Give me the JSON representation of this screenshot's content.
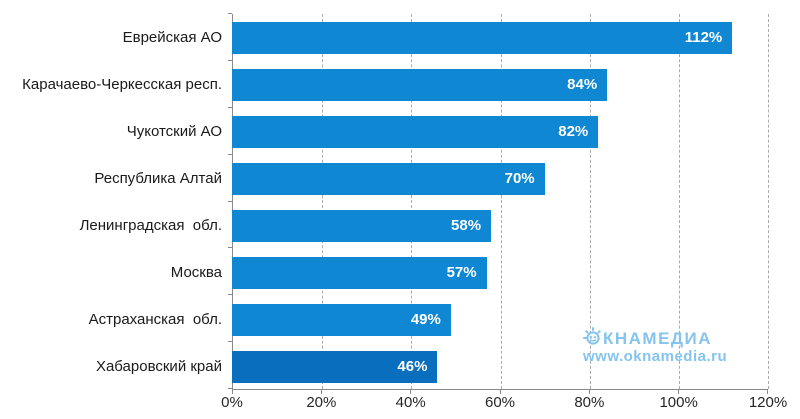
{
  "chart_data": {
    "type": "bar",
    "orientation": "horizontal",
    "title": "",
    "xlabel": "",
    "ylabel": "",
    "categories": [
      "Еврейская АО",
      "Карачаево-Черкесская респ.",
      "Чукотский АО",
      "Республика Алтай",
      "Ленинградская  обл.",
      "Москва",
      "Астраханская  обл.",
      "Хабаровский край"
    ],
    "values": [
      112,
      84,
      82,
      70,
      58,
      57,
      49,
      46
    ],
    "value_labels": [
      "112%",
      "84%",
      "82%",
      "70%",
      "58%",
      "57%",
      "49%",
      "46%"
    ],
    "x_ticks": [
      "0%",
      "20%",
      "40%",
      "60%",
      "80%",
      "100%",
      "120%"
    ],
    "xlim": [
      0,
      120
    ],
    "grid": "vertical-dashed",
    "legend": "none",
    "bar_color": "#0F87D2",
    "highlight_bar_color": "#0A6EBE",
    "highlight_index": 7
  },
  "watermark": {
    "brand_full": "ОКНАМЕДИА",
    "brand_after_icon": "КНАМЕДИА",
    "url": "www.oknamedia.ru",
    "color": "#85C4EE",
    "icon": "sun-smiley-icon"
  }
}
